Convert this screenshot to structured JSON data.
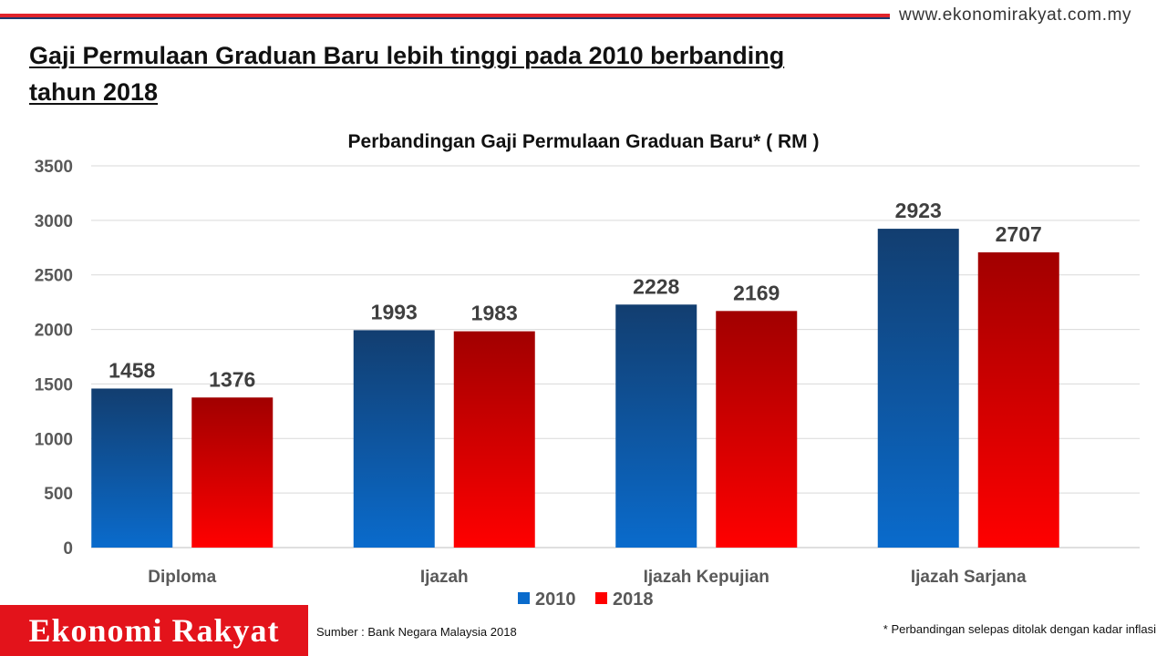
{
  "site_url": "www.ekonomirakyat.com.my",
  "headline": "Gaji Permulaan Graduan Baru lebih tinggi pada 2010 berbanding tahun 2018",
  "brand_label": "Ekonomi Rakyat",
  "source_text": "Sumber  : Bank Negara Malaysia 2018",
  "footnote": "* Perbandingan selepas ditolak dengan kadar inflasi",
  "colors": {
    "accent_red": "#e3131b",
    "series_2010_top": "#123e70",
    "series_2010_bottom": "#0a6bcc",
    "series_2018_top": "#a10000",
    "series_2018_bottom": "#ff0000"
  },
  "chart_data": {
    "type": "bar",
    "title": "Perbandingan Gaji Permulaan Graduan Baru* ( RM )",
    "categories": [
      "Diploma",
      "Ijazah",
      "Ijazah Kepujian",
      "Ijazah Sarjana"
    ],
    "series": [
      {
        "name": "2010",
        "values": [
          1458,
          1993,
          2228,
          2923
        ]
      },
      {
        "name": "2018",
        "values": [
          1376,
          1983,
          2169,
          2707
        ]
      }
    ],
    "yticks": [
      "0",
      "500",
      "1000",
      "1500",
      "2000",
      "2500",
      "3000",
      "3500"
    ],
    "ylim": [
      0,
      3500
    ],
    "grid": true,
    "legend": "bottom-center",
    "data_labels": true
  }
}
